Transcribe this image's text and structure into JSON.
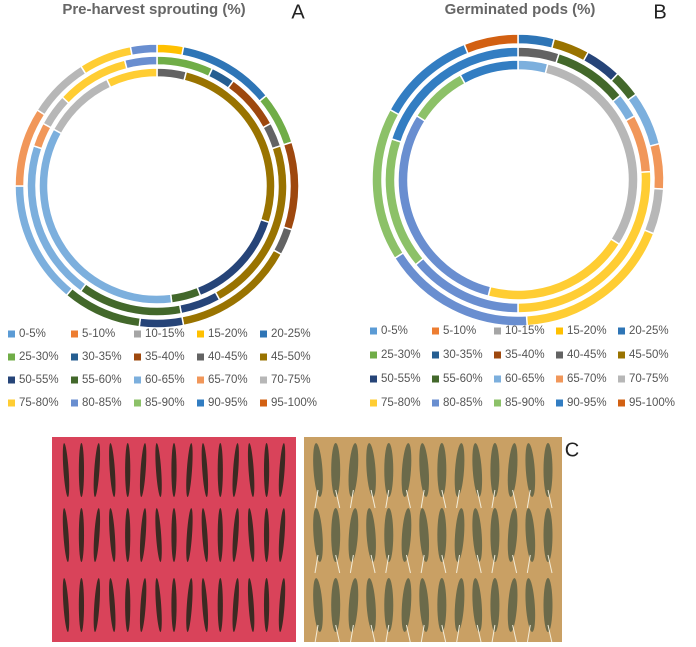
{
  "chart_data": [
    {
      "type": "donut",
      "title": "Pre-harvest sprouting (%)",
      "panel": "A",
      "categories": [
        "0-5%",
        "5-10%",
        "10-15%",
        "15-20%",
        "20-25%",
        "25-30%",
        "30-35%",
        "35-40%",
        "40-45%",
        "45-50%",
        "50-55%",
        "55-60%",
        "60-65%",
        "65-70%",
        "70-75%",
        "75-80%",
        "80-85%",
        "85-90%",
        "90-95%",
        "95-100%"
      ],
      "colors": [
        "#5b9bd5",
        "#ed7d31",
        "#a5a5a5",
        "#ffc000",
        "#2e75b6",
        "#70ad47",
        "#255e91",
        "#9e480e",
        "#636363",
        "#997300",
        "#264478",
        "#43682b",
        "#7cafdd",
        "#f1975a",
        "#b7b7b7",
        "#ffcd33",
        "#698ed0",
        "#8cc168",
        "#327dc2",
        "#d26012"
      ],
      "series": [
        {
          "values": [
            0,
            0,
            0,
            3,
            11,
            6,
            0,
            10,
            3,
            14,
            5,
            9,
            14,
            9,
            7,
            6,
            3,
            0,
            0,
            0
          ]
        },
        {
          "values": [
            0,
            0,
            0,
            0,
            0,
            7,
            3,
            7,
            3,
            22,
            5,
            13,
            20,
            3,
            4,
            9,
            4,
            0,
            0,
            0
          ]
        },
        {
          "values": [
            0,
            0,
            0,
            0,
            0,
            0,
            0,
            0,
            4,
            26,
            14,
            4,
            35,
            0,
            10,
            7,
            0,
            0,
            0,
            0
          ]
        }
      ]
    },
    {
      "type": "donut",
      "title": "Germinated pods (%)",
      "panel": "B",
      "categories": [
        "0-5%",
        "5-10%",
        "10-15%",
        "15-20%",
        "20-25%",
        "25-30%",
        "30-35%",
        "35-40%",
        "40-45%",
        "45-50%",
        "50-55%",
        "55-60%",
        "60-65%",
        "65-70%",
        "70-75%",
        "75-80%",
        "80-85%",
        "85-90%",
        "90-95%",
        "95-100%"
      ],
      "colors": [
        "#5b9bd5",
        "#ed7d31",
        "#a5a5a5",
        "#ffc000",
        "#2e75b6",
        "#70ad47",
        "#255e91",
        "#9e480e",
        "#636363",
        "#997300",
        "#264478",
        "#43682b",
        "#7cafdd",
        "#f1975a",
        "#b7b7b7",
        "#ffcd33",
        "#698ed0",
        "#8cc168",
        "#327dc2",
        "#d26012"
      ],
      "series": [
        {
          "values": [
            0,
            0,
            0,
            0,
            4,
            0,
            0,
            0,
            0,
            4,
            4,
            3,
            6,
            5,
            5,
            18,
            17,
            17,
            11,
            6
          ]
        },
        {
          "values": [
            0,
            0,
            0,
            0,
            0,
            0,
            0,
            0,
            5,
            0,
            0,
            9,
            3,
            7,
            0,
            26,
            14,
            16,
            20,
            0
          ]
        },
        {
          "values": [
            0,
            0,
            0,
            0,
            0,
            0,
            0,
            0,
            0,
            0,
            0,
            0,
            4,
            0,
            30,
            20,
            30,
            8,
            8,
            0
          ]
        }
      ]
    }
  ],
  "photos": {
    "panel": "C"
  }
}
